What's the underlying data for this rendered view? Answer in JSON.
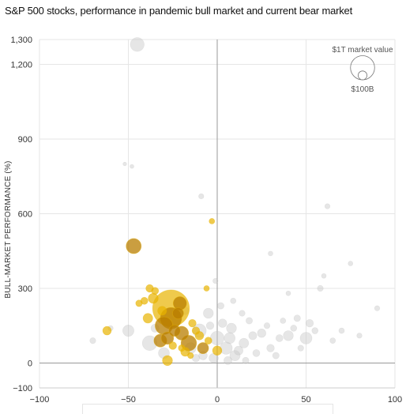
{
  "chart_data": {
    "type": "scatter",
    "title": "S&P 500 stocks, performance in pandemic bull market and current bear market",
    "ylabel": "BULL-MARKET PERFORMANCE (%)",
    "xlabel": "",
    "xlim": [
      -100,
      100
    ],
    "ylim": [
      -100,
      1300
    ],
    "x_ticks": [
      -100,
      -50,
      0,
      50,
      100
    ],
    "x_tick_labels": [
      "−100",
      "−50",
      "0",
      "50",
      "100"
    ],
    "y_ticks": [
      -100,
      0,
      300,
      600,
      900,
      1200,
      1300
    ],
    "y_tick_labels": [
      "−100",
      "0",
      "300",
      "600",
      "900",
      "1,200",
      "1,300"
    ],
    "grid": true,
    "size_legend": {
      "large_label": "$1T market value",
      "small_label": "$100B",
      "large_value": 1000,
      "small_value": 100,
      "placement": "top-right"
    },
    "colors": {
      "highlight": "#e8b400",
      "highlight_dark": "#b87d00",
      "other": "#c8c8c8",
      "gridline": "#e6e6e6",
      "zero_axis": "#999999"
    },
    "series": [
      {
        "group": "highlighted",
        "points": [
          {
            "x": -26,
            "y": 220,
            "size": 2200
          },
          {
            "x": -47,
            "y": 470,
            "size": 320
          },
          {
            "x": -26,
            "y": 180,
            "size": 700
          },
          {
            "x": -30,
            "y": 150,
            "size": 450
          },
          {
            "x": -21,
            "y": 240,
            "size": 240
          },
          {
            "x": -36,
            "y": 260,
            "size": 120
          },
          {
            "x": -39,
            "y": 180,
            "size": 110
          },
          {
            "x": -32,
            "y": 90,
            "size": 220
          },
          {
            "x": -16,
            "y": 80,
            "size": 340
          },
          {
            "x": -20,
            "y": 120,
            "size": 260
          },
          {
            "x": -8,
            "y": 60,
            "size": 160
          },
          {
            "x": -28,
            "y": 100,
            "size": 200
          },
          {
            "x": -24,
            "y": 130,
            "size": 160
          },
          {
            "x": -62,
            "y": 130,
            "size": 80
          },
          {
            "x": -28,
            "y": 10,
            "size": 120
          },
          {
            "x": -18,
            "y": 45,
            "size": 90
          },
          {
            "x": -10,
            "y": 110,
            "size": 80
          },
          {
            "x": 0,
            "y": 50,
            "size": 100
          },
          {
            "x": -3,
            "y": 570,
            "size": 25
          },
          {
            "x": -38,
            "y": 300,
            "size": 60
          },
          {
            "x": -35,
            "y": 290,
            "size": 50
          },
          {
            "x": -41,
            "y": 250,
            "size": 50
          },
          {
            "x": -22,
            "y": 200,
            "size": 150
          },
          {
            "x": -14,
            "y": 160,
            "size": 60
          },
          {
            "x": -12,
            "y": 130,
            "size": 60
          },
          {
            "x": -5,
            "y": 90,
            "size": 50
          },
          {
            "x": -31,
            "y": 210,
            "size": 90
          },
          {
            "x": -25,
            "y": 70,
            "size": 60
          },
          {
            "x": -6,
            "y": 300,
            "size": 25
          },
          {
            "x": -44,
            "y": 240,
            "size": 40
          },
          {
            "x": -20,
            "y": 60,
            "size": 40
          },
          {
            "x": -15,
            "y": 30,
            "size": 30
          }
        ]
      },
      {
        "group": "other",
        "points": [
          {
            "x": -45,
            "y": 1280,
            "size": 260
          },
          {
            "x": -50,
            "y": 130,
            "size": 160
          },
          {
            "x": -38,
            "y": 80,
            "size": 300
          },
          {
            "x": -30,
            "y": 40,
            "size": 150
          },
          {
            "x": -10,
            "y": 130,
            "size": 250
          },
          {
            "x": -5,
            "y": 200,
            "size": 120
          },
          {
            "x": 0,
            "y": 100,
            "size": 260
          },
          {
            "x": 5,
            "y": 60,
            "size": 200
          },
          {
            "x": 8,
            "y": 140,
            "size": 120
          },
          {
            "x": 10,
            "y": 30,
            "size": 130
          },
          {
            "x": 15,
            "y": 80,
            "size": 110
          },
          {
            "x": 20,
            "y": 110,
            "size": 70
          },
          {
            "x": 25,
            "y": 120,
            "size": 80
          },
          {
            "x": 30,
            "y": 60,
            "size": 60
          },
          {
            "x": 35,
            "y": 100,
            "size": 50
          },
          {
            "x": 40,
            "y": 110,
            "size": 120
          },
          {
            "x": 45,
            "y": 180,
            "size": 40
          },
          {
            "x": 50,
            "y": 100,
            "size": 180
          },
          {
            "x": 52,
            "y": 160,
            "size": 60
          },
          {
            "x": 58,
            "y": 300,
            "size": 30
          },
          {
            "x": 62,
            "y": 630,
            "size": 20
          },
          {
            "x": 70,
            "y": 130,
            "size": 25
          },
          {
            "x": 75,
            "y": 400,
            "size": 15
          },
          {
            "x": 80,
            "y": 110,
            "size": 20
          },
          {
            "x": 90,
            "y": 220,
            "size": 20
          },
          {
            "x": -48,
            "y": 790,
            "size": 8
          },
          {
            "x": -52,
            "y": 800,
            "size": 6
          },
          {
            "x": -9,
            "y": 670,
            "size": 20
          },
          {
            "x": 30,
            "y": 440,
            "size": 15
          },
          {
            "x": 40,
            "y": 280,
            "size": 15
          },
          {
            "x": 60,
            "y": 350,
            "size": 15
          },
          {
            "x": -70,
            "y": 90,
            "size": 30
          },
          {
            "x": -60,
            "y": 140,
            "size": 20
          },
          {
            "x": -15,
            "y": 60,
            "size": 150
          },
          {
            "x": -2,
            "y": 20,
            "size": 100
          },
          {
            "x": 3,
            "y": 160,
            "size": 80
          },
          {
            "x": 7,
            "y": 100,
            "size": 150
          },
          {
            "x": 12,
            "y": 50,
            "size": 90
          },
          {
            "x": 18,
            "y": 170,
            "size": 40
          },
          {
            "x": 22,
            "y": 40,
            "size": 50
          },
          {
            "x": -8,
            "y": 30,
            "size": 80
          },
          {
            "x": -4,
            "y": 150,
            "size": 60
          },
          {
            "x": 2,
            "y": 230,
            "size": 40
          },
          {
            "x": 14,
            "y": 200,
            "size": 30
          },
          {
            "x": 28,
            "y": 150,
            "size": 30
          },
          {
            "x": 33,
            "y": 30,
            "size": 40
          },
          {
            "x": 37,
            "y": 170,
            "size": 25
          },
          {
            "x": 43,
            "y": 140,
            "size": 35
          },
          {
            "x": 47,
            "y": 60,
            "size": 30
          },
          {
            "x": 55,
            "y": 130,
            "size": 35
          },
          {
            "x": 65,
            "y": 90,
            "size": 25
          },
          {
            "x": -35,
            "y": 140,
            "size": 70
          },
          {
            "x": -18,
            "y": 210,
            "size": 60
          },
          {
            "x": -12,
            "y": 20,
            "size": 60
          },
          {
            "x": 6,
            "y": 10,
            "size": 70
          },
          {
            "x": 16,
            "y": 10,
            "size": 40
          },
          {
            "x": 9,
            "y": 250,
            "size": 25
          },
          {
            "x": -1,
            "y": 330,
            "size": 20
          }
        ]
      }
    ]
  }
}
